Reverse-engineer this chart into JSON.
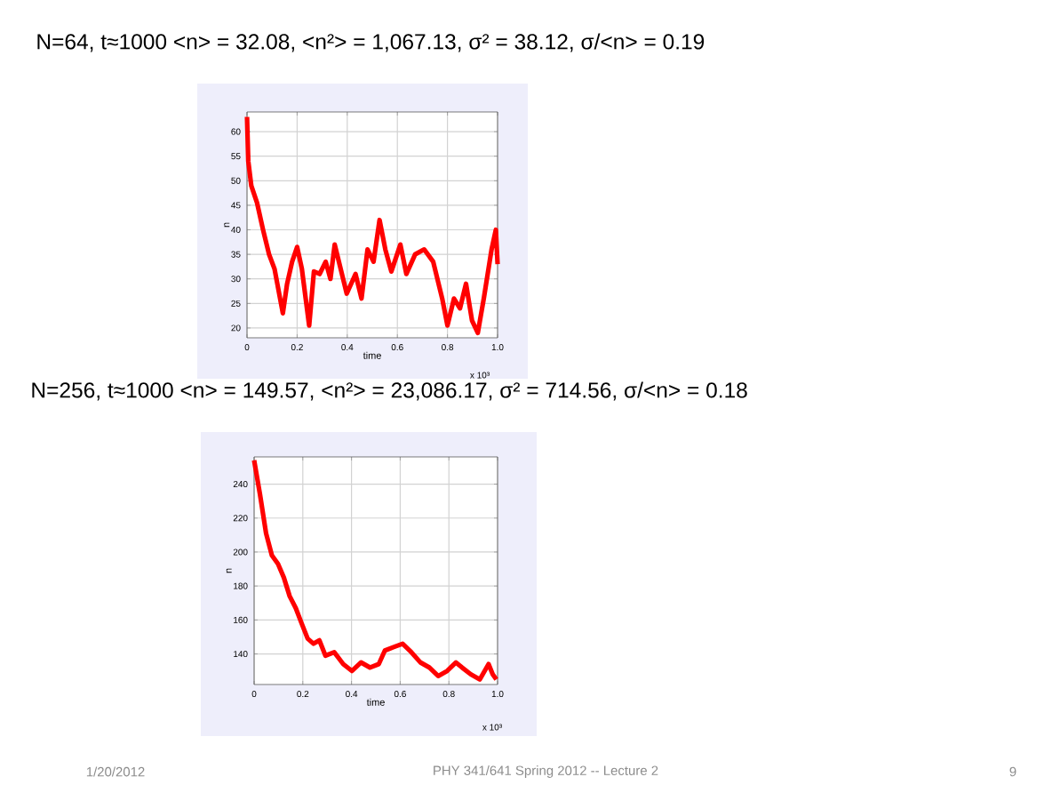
{
  "chart_data": [
    {
      "type": "line",
      "title": "N=64, t≈1000   <n> = 32.08, <n²> = 1,067.13, σ² = 38.12, σ/<n> = 0.19",
      "xlabel": "time",
      "ylabel": "n",
      "xlim": [
        0,
        1
      ],
      "xticks": [
        0,
        0.2,
        0.4,
        0.6,
        0.8,
        {
          "value": 1,
          "label": "1.0"
        }
      ],
      "ylim": [
        18,
        64
      ],
      "yticks": [
        20,
        25,
        30,
        35,
        40,
        45,
        50,
        55,
        60
      ],
      "grid": true,
      "annotations": [
        "x 10³"
      ],
      "series": [
        {
          "color": "#ff0000",
          "x": [
            0,
            0.005,
            0.017,
            0.04,
            0.064,
            0.088,
            0.11,
            0.143,
            0.16,
            0.18,
            0.2,
            0.219,
            0.248,
            0.267,
            0.29,
            0.314,
            0.333,
            0.35,
            0.374,
            0.398,
            0.433,
            0.457,
            0.481,
            0.505,
            0.529,
            0.552,
            0.576,
            0.612,
            0.636,
            0.671,
            0.707,
            0.743,
            0.779,
            0.8,
            0.826,
            0.85,
            0.874,
            0.898,
            0.921,
            0.945,
            0.976,
            0.993,
            1.0
          ],
          "values": [
            63,
            54,
            49,
            45.5,
            40,
            35,
            32,
            23,
            29,
            33.5,
            36.5,
            32,
            20.5,
            31.5,
            31,
            33.5,
            30,
            37,
            32,
            27,
            31,
            26,
            36,
            33.5,
            42,
            36,
            31.5,
            37,
            31,
            35,
            36,
            33.5,
            26,
            20.5,
            26,
            24,
            29,
            21.5,
            19,
            26,
            36,
            40,
            33
          ]
        }
      ]
    },
    {
      "type": "line",
      "title": "N=256, t≈1000   <n> = 149.57, <n²> = 23,086.17, σ² = 714.56, σ/<n> = 0.18",
      "xlabel": "time",
      "ylabel": "n",
      "xlim": [
        0,
        1
      ],
      "xticks": [
        0,
        0.2,
        0.4,
        0.6,
        0.8,
        {
          "value": 1,
          "label": "1.0"
        }
      ],
      "ylim": [
        122,
        256
      ],
      "yticks": [
        140,
        160,
        180,
        200,
        220,
        240
      ],
      "grid": true,
      "annotations": [
        "x 10³",
        "1/20/2012",
        "PHY 341/641 Spring 2012 -- Lecture 2",
        "9"
      ],
      "series": [
        {
          "color": "#ff0000",
          "x": [
            0,
            0.024,
            0.049,
            0.073,
            0.098,
            0.122,
            0.146,
            0.171,
            0.195,
            0.22,
            0.244,
            0.268,
            0.293,
            0.329,
            0.366,
            0.402,
            0.439,
            0.476,
            0.512,
            0.537,
            0.573,
            0.61,
            0.646,
            0.683,
            0.72,
            0.756,
            0.793,
            0.829,
            0.854,
            0.89,
            0.927,
            0.963,
            0.98,
            0.995
          ],
          "values": [
            254,
            234,
            211,
            198,
            193,
            185,
            174,
            167,
            158,
            149,
            146,
            148,
            139,
            141,
            134,
            130,
            135,
            132,
            134,
            142,
            144,
            146,
            141,
            135,
            132,
            127,
            130,
            135,
            132,
            128,
            125,
            134,
            128,
            125
          ]
        }
      ]
    }
  ]
}
